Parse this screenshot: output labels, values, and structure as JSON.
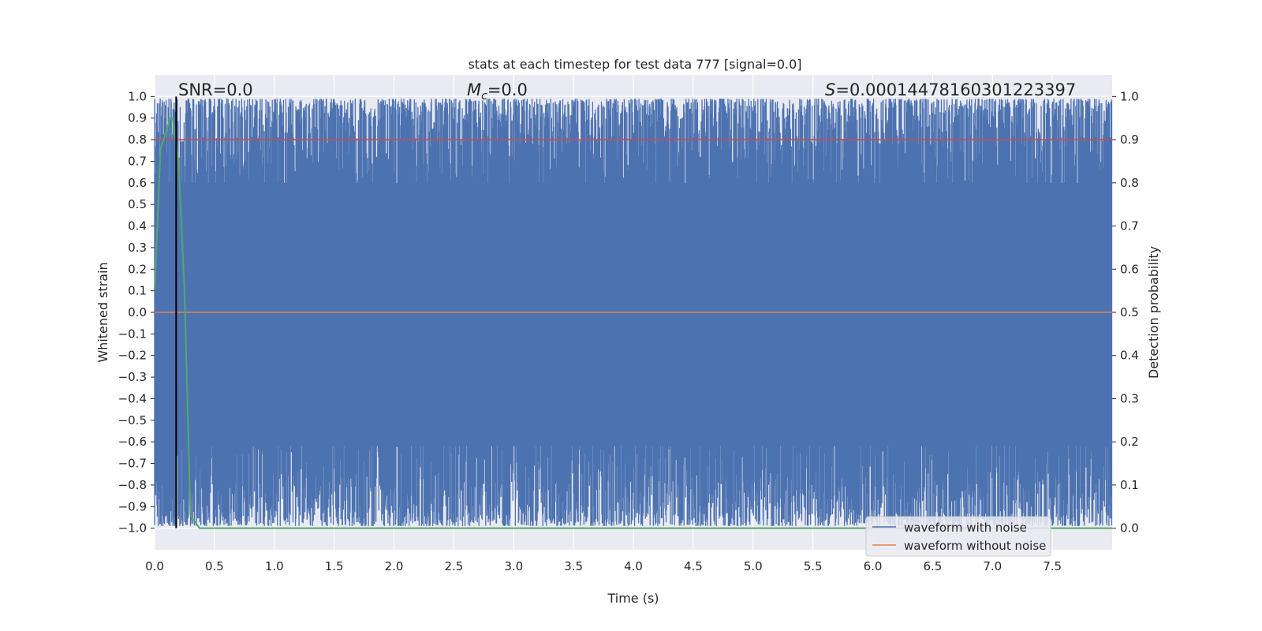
{
  "chart_data": {
    "type": "line",
    "title": "stats at each timestep for test data 777 [signal=0.0]",
    "xlabel": "Time (s)",
    "ylabel": "Whitened strain",
    "ylabel_right": "Detection probability",
    "xlim": [
      0.0,
      8.0
    ],
    "ylim": [
      -1.1,
      1.1
    ],
    "ylim_right": [
      -0.05,
      1.05
    ],
    "xticks": [
      "0.0",
      "0.5",
      "1.0",
      "1.5",
      "2.0",
      "2.5",
      "3.0",
      "3.5",
      "4.0",
      "4.5",
      "5.0",
      "5.5",
      "6.0",
      "6.5",
      "7.0",
      "7.5"
    ],
    "yticks_left": [
      "1.0",
      "0.9",
      "0.8",
      "0.7",
      "0.6",
      "0.5",
      "0.4",
      "0.3",
      "0.2",
      "0.1",
      "0.0",
      "−0.1",
      "−0.2",
      "−0.3",
      "−0.4",
      "−0.5",
      "−0.6",
      "−0.7",
      "−0.8",
      "−0.9",
      "−1.0"
    ],
    "yticks_right": [
      "1.0",
      "0.9",
      "0.8",
      "0.7",
      "0.6",
      "0.5",
      "0.4",
      "0.3",
      "0.2",
      "0.1",
      "0.0"
    ],
    "grid": true,
    "legend_position": "lower-right",
    "annotations": {
      "snr": "SNR=0.0",
      "mc_symbol": "M",
      "mc_sub": "c",
      "mc_value": "=0.0",
      "s_symbol": "S",
      "s_value": "=0.00014478160301223397"
    },
    "series": [
      {
        "name": "waveform with noise",
        "color": "#4c72b0",
        "axis": "left",
        "description_range": [
          -1.0,
          1.0
        ]
      },
      {
        "name": "waveform without noise",
        "color": "#dd8452",
        "axis": "left",
        "x": [
          0.0,
          8.0
        ],
        "y": [
          0.0,
          0.0
        ]
      },
      {
        "color": "#55a868",
        "axis": "right",
        "x": [
          0.0,
          0.05,
          0.1,
          0.125,
          0.15,
          0.2,
          0.25,
          0.3,
          0.375,
          8.0
        ],
        "y": [
          0.55,
          0.88,
          0.92,
          0.95,
          0.95,
          0.85,
          0.55,
          0.03,
          0.0,
          0.0
        ]
      }
    ],
    "threshold_line": {
      "value": 0.9,
      "axis": "right",
      "color": "#c44e52"
    },
    "vertical_marker": {
      "x": 0.18,
      "color": "#000000"
    }
  }
}
